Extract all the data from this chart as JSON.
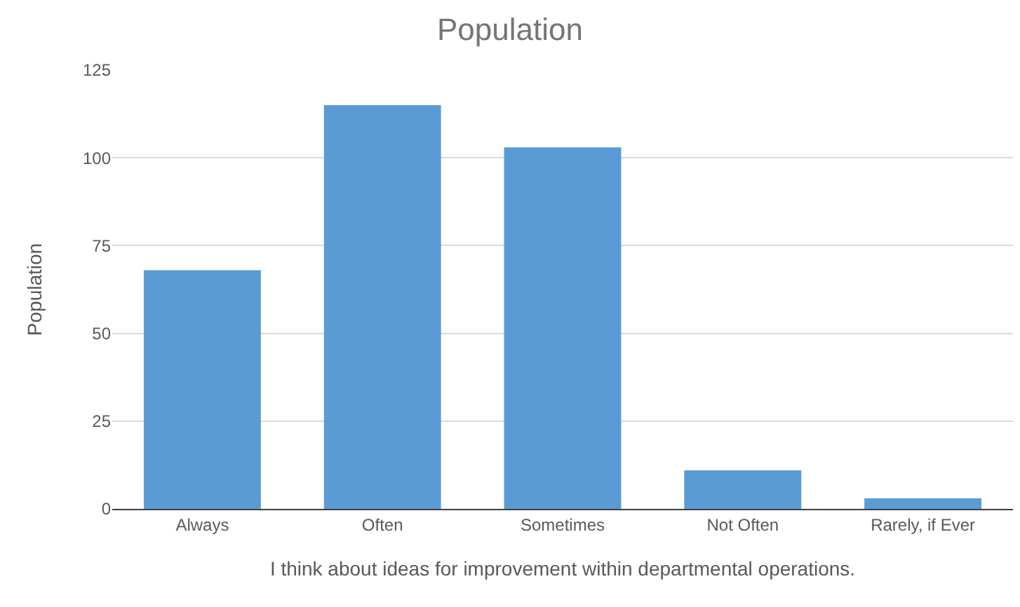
{
  "chart_data": {
    "type": "bar",
    "title": "Population",
    "xlabel": "I think about ideas for improvement within departmental operations.",
    "ylabel": "Population",
    "categories": [
      "Always",
      "Often",
      "Sometimes",
      "Not Often",
      "Rarely, if Ever"
    ],
    "values": [
      68,
      115,
      103,
      11,
      3
    ],
    "color": "#5b9bd5",
    "ylim": [
      0,
      125
    ],
    "yticks": [
      0,
      25,
      50,
      75,
      100,
      125
    ],
    "grid": "y"
  }
}
